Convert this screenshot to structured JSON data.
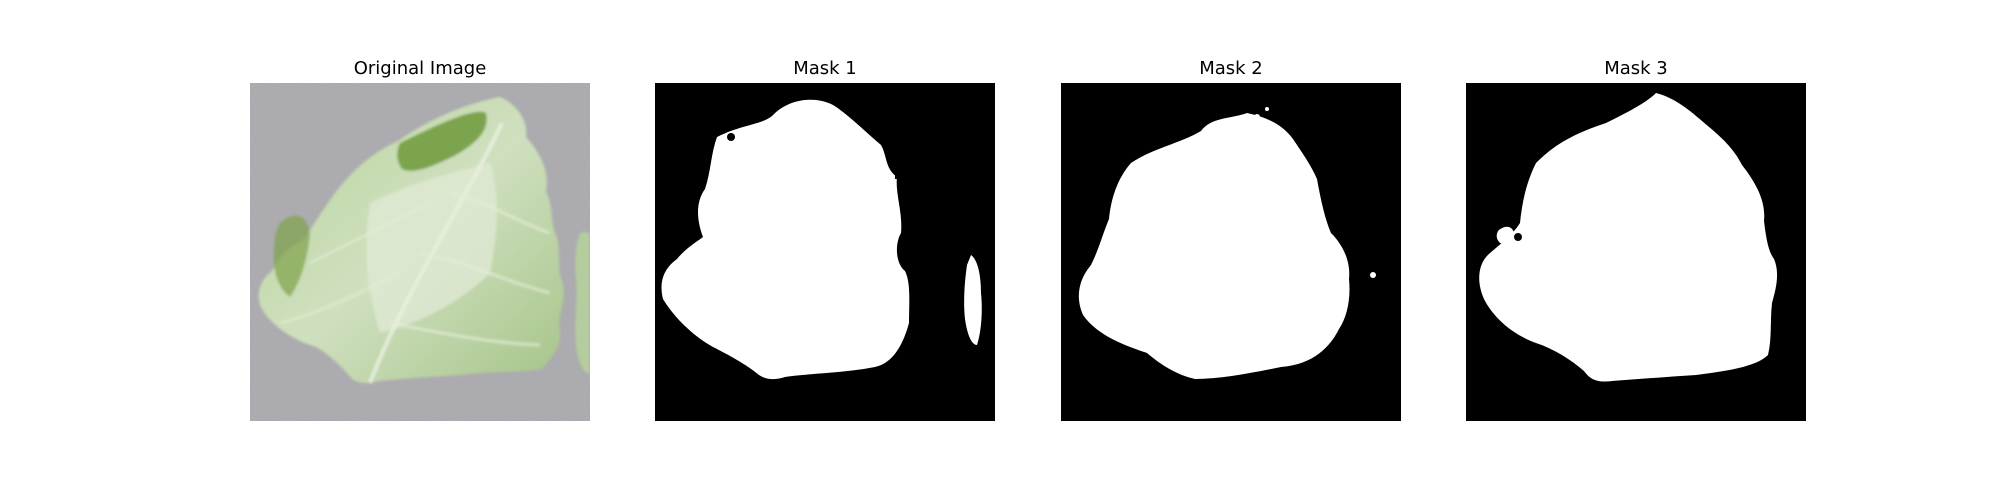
{
  "panels": [
    {
      "title": "Original Image",
      "kind": "photo"
    },
    {
      "title": "Mask 1",
      "kind": "mask"
    },
    {
      "title": "Mask 2",
      "kind": "mask"
    },
    {
      "title": "Mask 3",
      "kind": "mask"
    }
  ],
  "colors": {
    "figure_background": "#ffffff",
    "mask_background": "#000000",
    "mask_foreground": "#ffffff",
    "photo_background": "#a7a6aa",
    "leaf_light": "#cfe0bf",
    "leaf_mid": "#a9c98f",
    "leaf_dark": "#6f9a3c"
  }
}
